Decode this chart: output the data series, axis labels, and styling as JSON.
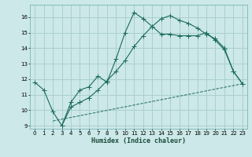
{
  "title": "",
  "xlabel": "Humidex (Indice chaleur)",
  "ylabel": "",
  "background_color": "#cce8e8",
  "grid_color": "#aacfcf",
  "line_color": "#1a6b5a",
  "xlim": [
    -0.5,
    23.5
  ],
  "ylim": [
    8.8,
    16.8
  ],
  "yticks": [
    9,
    10,
    11,
    12,
    13,
    14,
    15,
    16
  ],
  "xticks": [
    0,
    1,
    2,
    3,
    4,
    5,
    6,
    7,
    8,
    9,
    10,
    11,
    12,
    13,
    14,
    15,
    16,
    17,
    18,
    19,
    20,
    21,
    22,
    23
  ],
  "line1_x": [
    0,
    1,
    2,
    3,
    4,
    5,
    6,
    7,
    8,
    9,
    10,
    11,
    12,
    13,
    14,
    15,
    16,
    17,
    18,
    19,
    20,
    21,
    22,
    23
  ],
  "line1_y": [
    11.8,
    11.3,
    9.9,
    9.0,
    10.5,
    11.3,
    11.5,
    12.2,
    11.8,
    13.3,
    15.0,
    16.3,
    15.9,
    15.4,
    14.9,
    14.9,
    14.8,
    14.8,
    14.8,
    15.0,
    14.5,
    13.9,
    12.5,
    11.7
  ],
  "line2_x": [
    3,
    4,
    5,
    6,
    7,
    8,
    9,
    10,
    11,
    12,
    13,
    14,
    15,
    16,
    17,
    18,
    19,
    20,
    21,
    22,
    23
  ],
  "line2_y": [
    9.0,
    10.2,
    10.5,
    10.8,
    11.3,
    11.9,
    12.5,
    13.2,
    14.1,
    14.8,
    15.4,
    15.9,
    16.1,
    15.8,
    15.6,
    15.3,
    14.9,
    14.6,
    14.0,
    12.5,
    11.7
  ],
  "line3_x": [
    2,
    23
  ],
  "line3_y": [
    9.3,
    11.7
  ]
}
